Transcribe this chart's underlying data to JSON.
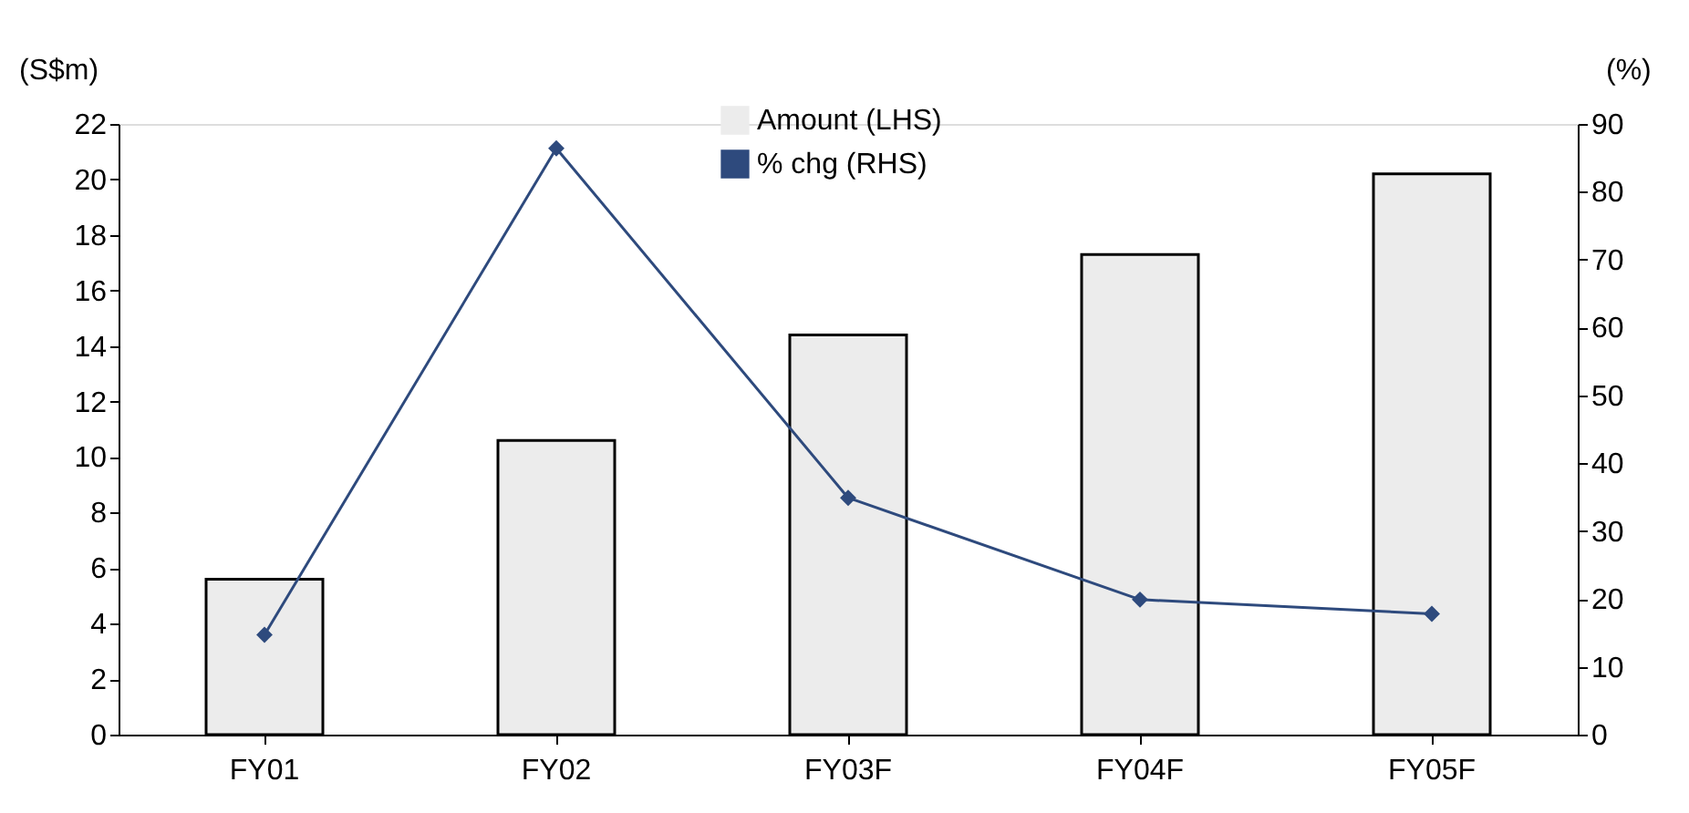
{
  "chart_data": {
    "type": "bar",
    "categories": [
      "FY01",
      "FY02",
      "FY03F",
      "FY04F",
      "FY05F"
    ],
    "series": [
      {
        "name": "Amount  (LHS)",
        "color": "#ececec",
        "values": [
          5.6,
          10.6,
          14.4,
          17.3,
          20.2
        ]
      },
      {
        "name": "% chg (RHS)",
        "color": "#2e4a7d",
        "type": "line",
        "axis": "y2",
        "marker": "diamond",
        "values": [
          14.7,
          86.4,
          34.9,
          19.9,
          17.8
        ]
      }
    ],
    "ylabel": "(S$m)",
    "y2label": "(%)",
    "ylim": [
      0,
      22
    ],
    "yticks": [
      0,
      2,
      4,
      6,
      8,
      10,
      12,
      14,
      16,
      18,
      20,
      22
    ],
    "y2lim": [
      0,
      90
    ],
    "y2ticks": [
      0,
      10,
      20,
      30,
      40,
      50,
      60,
      70,
      80,
      90
    ],
    "legend": "top"
  }
}
